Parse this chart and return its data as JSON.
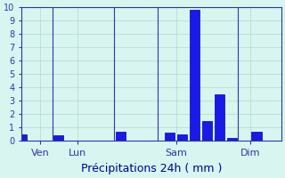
{
  "bar_positions": [
    0,
    3,
    8,
    12,
    13,
    14,
    15,
    16,
    17,
    19
  ],
  "bar_heights": [
    0.5,
    0.4,
    0.7,
    0.6,
    0.5,
    9.8,
    1.5,
    3.5,
    0.2,
    0.7
  ],
  "bar_width": 0.8,
  "bar_color": "#1a1ae6",
  "bar_edge_color": "#0000aa",
  "xlim": [
    0,
    21
  ],
  "ylim": [
    0,
    10
  ],
  "yticks": [
    0,
    1,
    2,
    3,
    4,
    5,
    6,
    7,
    8,
    9,
    10
  ],
  "xtick_positions": [
    1.5,
    4.5,
    12.5,
    18.5
  ],
  "xtick_labels": [
    "Ven",
    "Lun",
    "Sam",
    "Dim"
  ],
  "xlabel": "Précipitations 24h ( mm )",
  "xlabel_fontsize": 9,
  "xtick_fontsize": 8,
  "ytick_fontsize": 7,
  "background_color": "#d8f5f0",
  "grid_color": "#b0d8d0",
  "axis_color": "#3333aa",
  "tick_color": "#3333aa",
  "label_color": "#00008b"
}
